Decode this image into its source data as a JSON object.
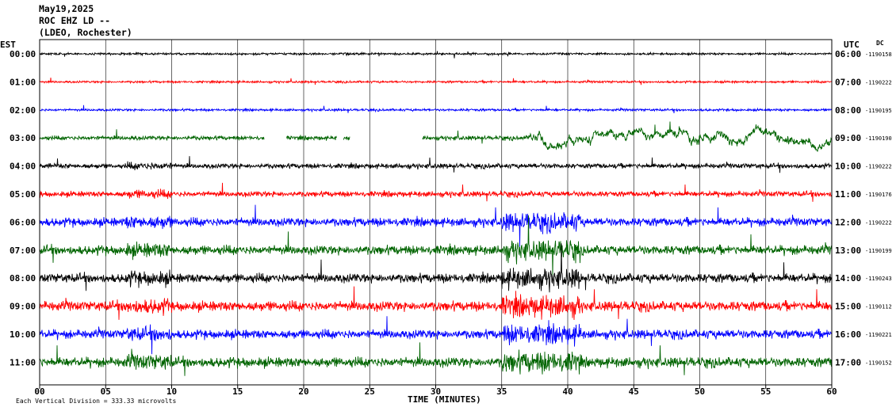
{
  "header": {
    "date": "May19,2025",
    "station": "ROC EHZ LD --",
    "network": "(LDEO, Rochester)"
  },
  "chart_data": {
    "type": "line",
    "title": "ROC EHZ LD --",
    "left_axis_label": "EST",
    "right_axis_label": "UTC",
    "dc_label": "DC",
    "xlabel": "TIME (MINUTES)",
    "xlim": [
      0,
      60
    ],
    "x_ticks": [
      "00",
      "05",
      "10",
      "15",
      "20",
      "25",
      "30",
      "35",
      "40",
      "45",
      "50",
      "55",
      "60"
    ],
    "footer_note": "Each Vertical Division = 333.33 microvolts",
    "colors": {
      "black": "#000000",
      "red": "#ff0000",
      "blue": "#0000ff",
      "green": "#006400"
    },
    "rows": [
      {
        "est": "00:00",
        "utc": "06:00",
        "dc": "-1190158",
        "color": "black",
        "amplitude": 1.0
      },
      {
        "est": "01:00",
        "utc": "07:00",
        "dc": "-1190222",
        "color": "red",
        "amplitude": 1.0
      },
      {
        "est": "02:00",
        "utc": "08:00",
        "dc": "-1190195",
        "color": "blue",
        "amplitude": 1.1
      },
      {
        "est": "03:00",
        "utc": "09:00",
        "dc": "-1190190",
        "color": "green",
        "amplitude": 2.0,
        "gaps": [
          [
            17.0,
            18.7
          ],
          [
            22.5,
            23.0
          ],
          [
            23.5,
            29.0
          ]
        ],
        "burst": [
          37.0,
          60.0
        ]
      },
      {
        "est": "04:00",
        "utc": "10:00",
        "dc": "-1190222",
        "color": "black",
        "amplitude": 2.3
      },
      {
        "est": "05:00",
        "utc": "11:00",
        "dc": "-1190176",
        "color": "red",
        "amplitude": 2.6
      },
      {
        "est": "06:00",
        "utc": "12:00",
        "dc": "-1190222",
        "color": "blue",
        "amplitude": 4.0
      },
      {
        "est": "07:00",
        "utc": "13:00",
        "dc": "-1190199",
        "color": "green",
        "amplitude": 4.3
      },
      {
        "est": "08:00",
        "utc": "14:00",
        "dc": "-1190243",
        "color": "black",
        "amplitude": 4.3
      },
      {
        "est": "09:00",
        "utc": "15:00",
        "dc": "-1190112",
        "color": "red",
        "amplitude": 4.6
      },
      {
        "est": "10:00",
        "utc": "16:00",
        "dc": "-1190221",
        "color": "blue",
        "amplitude": 4.2
      },
      {
        "est": "11:00",
        "utc": "17:00",
        "dc": "-1190152",
        "color": "green",
        "amplitude": 4.6
      }
    ],
    "grid": true
  }
}
